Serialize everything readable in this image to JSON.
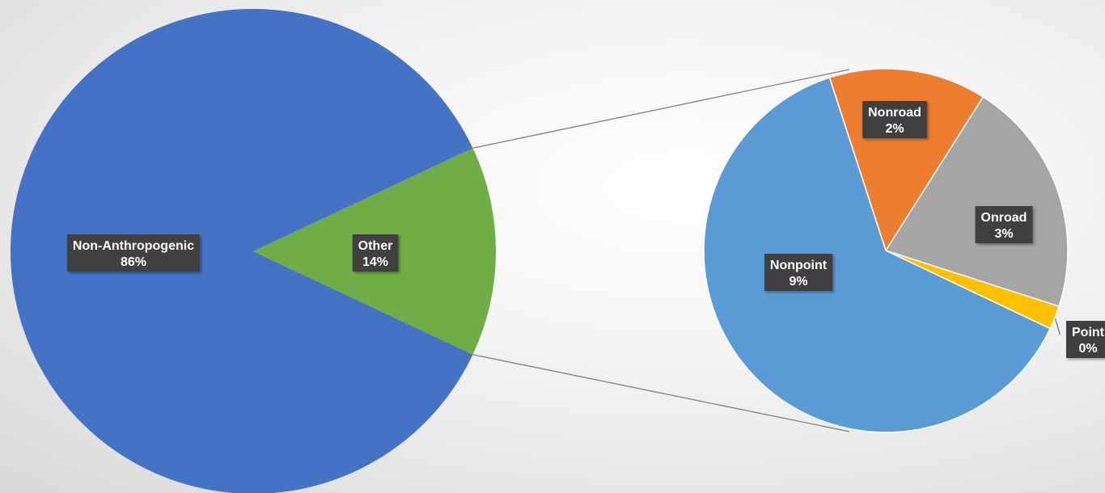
{
  "chart_data": {
    "type": "pie",
    "subtype": "pie-of-pie",
    "main_pie": {
      "slices": [
        {
          "label": "Non-Anthropogenic",
          "value": 86,
          "value_label": "86%",
          "color": "#4472C4"
        },
        {
          "label": "Other",
          "value": 14,
          "value_label": "14%",
          "color": "#70AD47"
        }
      ]
    },
    "secondary_pie": {
      "breakdown_of": "Other",
      "slices": [
        {
          "label": "Nonroad",
          "value": 2,
          "value_label": "2%",
          "color": "#ED7D31"
        },
        {
          "label": "Onroad",
          "value": 3,
          "value_label": "3%",
          "color": "#A5A5A5"
        },
        {
          "label": "Point",
          "value": 0.3,
          "value_label": "0%",
          "color": "#FFC000"
        },
        {
          "label": "Nonpoint",
          "value": 9,
          "value_label": "9%",
          "color": "#5B9BD5"
        }
      ]
    },
    "label_box_color": "#404040",
    "connector_color": "#7f7f7f"
  }
}
